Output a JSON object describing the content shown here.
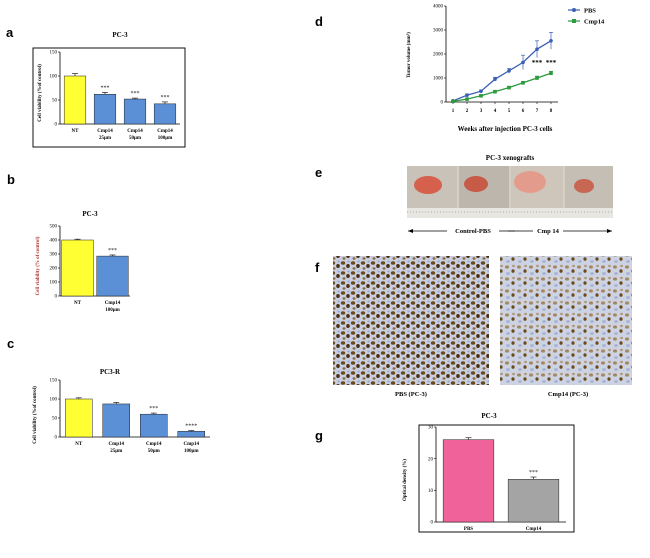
{
  "figure": {
    "letters": {
      "a": "a",
      "b": "b",
      "c": "c",
      "d": "d",
      "e": "e",
      "f": "f",
      "g": "g"
    },
    "colors": {
      "nt": "#ffff33",
      "treated": "#5b8fd6",
      "pbs_line": "#3b5fb5",
      "cmp_line": "#2c9a3e",
      "pbs_bar": "#f0629a",
      "cmp_bar": "#a4a4a4"
    }
  },
  "e": {
    "title": "PC-3 xenografts",
    "left_label": "Control-PBS",
    "right_label": "Cmp 14"
  },
  "f": {
    "left_caption": "PBS (PC-3)",
    "right_caption": "Cmp14 (PC-3)"
  },
  "chart_data": [
    {
      "id": "a",
      "type": "bar",
      "title": "PC-3",
      "ylabel": "Cell viability (%of control)",
      "categories": [
        [
          "NT"
        ],
        [
          "Cmp14",
          "25μm"
        ],
        [
          "Cmp14",
          "50μm"
        ],
        [
          "Cmp14",
          "100μm"
        ]
      ],
      "values": [
        100,
        62,
        52,
        42
      ],
      "errors": [
        5,
        4,
        2,
        4
      ],
      "stars": [
        "",
        "***",
        "***",
        "***"
      ],
      "ylim": [
        0,
        150
      ],
      "yticks": [
        0,
        50,
        100,
        150
      ]
    },
    {
      "id": "b",
      "type": "bar",
      "title": "PC-3",
      "ylabel": "Cell viability (% of control)",
      "categories": [
        [
          "NT"
        ],
        [
          "Cmp14",
          "100μm"
        ]
      ],
      "values": [
        400,
        285
      ],
      "errors": [
        6,
        8
      ],
      "stars": [
        "",
        "***"
      ],
      "ylim": [
        0,
        500
      ],
      "yticks": [
        0,
        100,
        200,
        300,
        400,
        500
      ]
    },
    {
      "id": "c",
      "type": "bar",
      "title": "PC3-R",
      "ylabel": "Cell viability (%of control)",
      "categories": [
        [
          "NT"
        ],
        [
          "Cmp14",
          "25μm"
        ],
        [
          "Cmp14",
          "50μm"
        ],
        [
          "Cmp14",
          "100μm"
        ]
      ],
      "values": [
        100,
        87,
        60,
        15
      ],
      "errors": [
        3,
        4,
        3,
        2
      ],
      "stars": [
        "",
        "",
        "***",
        "****"
      ],
      "ylim": [
        0,
        150
      ],
      "yticks": [
        0,
        50,
        100,
        150
      ]
    },
    {
      "id": "d",
      "type": "line",
      "title": "",
      "xlabel": "Weeks after injection PC-3 cells",
      "ylabel": "Tumor volume (mm³)",
      "x": [
        1,
        2,
        3,
        4,
        5,
        6,
        7,
        8
      ],
      "series": [
        {
          "name": "PBS",
          "values": [
            50,
            280,
            450,
            950,
            1300,
            1650,
            2200,
            2550
          ],
          "errors": [
            20,
            60,
            50,
            80,
            100,
            300,
            350,
            350
          ]
        },
        {
          "name": "Cmp14",
          "values": [
            30,
            120,
            260,
            430,
            600,
            800,
            1000,
            1200
          ],
          "errors": [
            10,
            20,
            30,
            40,
            50,
            60,
            80,
            80
          ]
        }
      ],
      "stars": {
        "7": "***",
        "8": "***"
      },
      "xlim": [
        0.5,
        8.5
      ],
      "ylim": [
        0,
        4000
      ],
      "yticks": [
        0,
        1000,
        2000,
        3000,
        4000
      ]
    },
    {
      "id": "g",
      "type": "bar",
      "title": "PC-3",
      "ylabel": "Optical density (%)",
      "categories": [
        [
          "PBS"
        ],
        [
          "Cmp14"
        ]
      ],
      "values": [
        26,
        13.5
      ],
      "errors": [
        0.6,
        0.7
      ],
      "stars": [
        "",
        "***"
      ],
      "ylim": [
        0,
        30
      ],
      "yticks": [
        0,
        10,
        20,
        30
      ]
    }
  ]
}
